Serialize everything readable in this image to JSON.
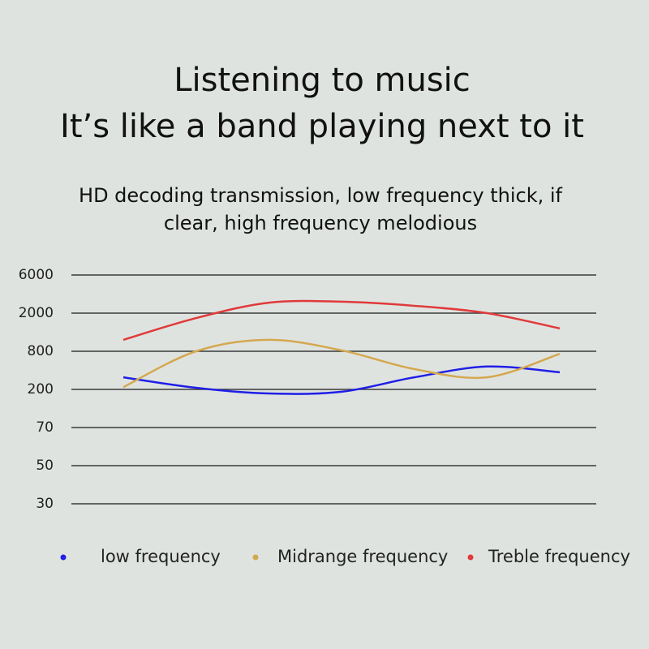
{
  "chart_data": {
    "type": "line",
    "title": "Listening to music",
    "subtitle": "It’s like a band playing next to it",
    "description_line1": "HD decoding transmission, low frequency thick, if",
    "description_line2": "clear, high frequency melodious",
    "categories": [
      null,
      null,
      null,
      null,
      null,
      null,
      null
    ],
    "series": [
      {
        "name": "low frequency",
        "color": "#1f1fe6",
        "values": [
          390,
          225,
          186,
          192,
          390,
          560,
          470
        ]
      },
      {
        "name": "Midrange frequency",
        "color": "#d4a84e",
        "values": [
          236,
          800,
          1160,
          830,
          520,
          390,
          760
        ]
      },
      {
        "name": "Treble frequency",
        "color": "#e03a3a",
        "values": [
          1160,
          1845,
          3100,
          3200,
          2770,
          2000,
          1520
        ]
      }
    ],
    "ylim": [
      30,
      6000
    ],
    "yticks": [
      30,
      50,
      70,
      200,
      800,
      2000,
      6000
    ],
    "grid": true
  }
}
